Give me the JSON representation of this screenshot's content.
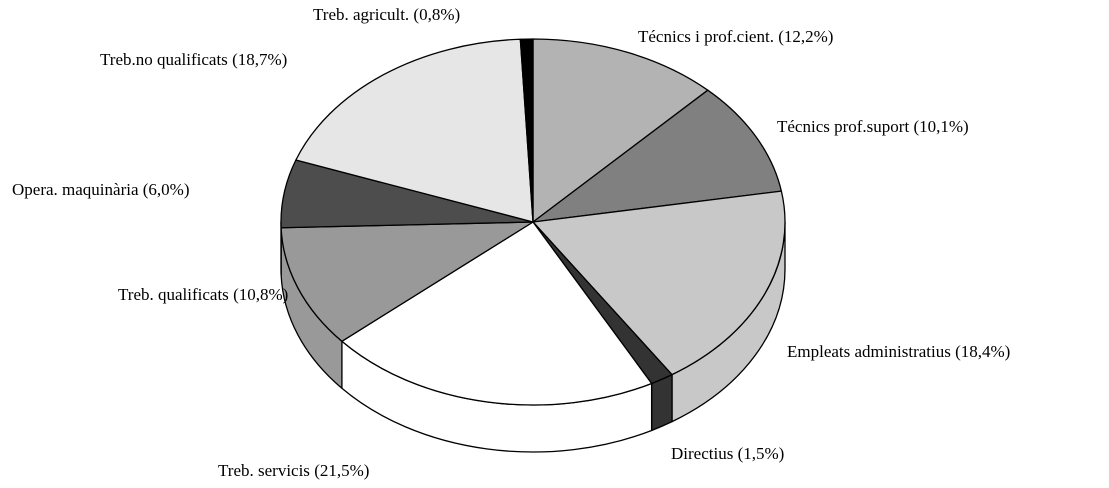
{
  "chart_data": {
    "type": "pie",
    "categories": [
      "Técnics i prof.cient.",
      "Técnics prof.suport",
      "Empleats administratius",
      "Directius",
      "Treb. servicis",
      "Treb. qualificats",
      "Opera. maquinària",
      "Treb.no qualificats",
      "Treb. agricult."
    ],
    "values": [
      12.2,
      10.1,
      18.4,
      1.5,
      21.5,
      10.8,
      6.0,
      18.7,
      0.8
    ],
    "value_labels": [
      "(12,2%)",
      "(10,1%)",
      "(18,4%)",
      "(1,5%)",
      "(21,5%)",
      "(10,8%)",
      "(6,0%)",
      "(18,7%)",
      "(0,8%)"
    ],
    "colors": [
      "#b3b3b3",
      "#808080",
      "#c8c8c8",
      "#333333",
      "#ffffff",
      "#999999",
      "#4d4d4d",
      "#e6e6e6",
      "#000000"
    ]
  }
}
